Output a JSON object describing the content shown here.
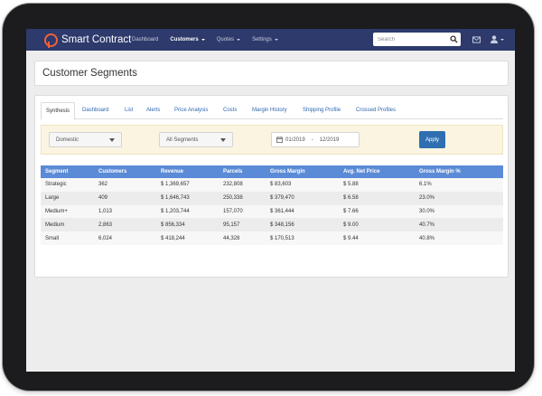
{
  "navbar": {
    "brand": "Smart Contract",
    "links": [
      "Dashboard",
      "Customers",
      "Quotes",
      "Settings"
    ],
    "search_placeholder": "Search"
  },
  "page": {
    "title": "Customer Segments"
  },
  "tabs": [
    "Synthesis",
    "Dashboard",
    "List",
    "Alerts",
    "Price Analysis",
    "Costs",
    "Margin History",
    "Shipping Profile",
    "Crossed Profiles"
  ],
  "filters": {
    "region": "Domestic",
    "segment": "All Segments",
    "date_from": "01/2019",
    "date_sep": "-",
    "date_to": "12/2019",
    "apply_label": "Apply"
  },
  "table": {
    "columns": [
      "Segment",
      "Customers",
      "Revenue",
      "Parcels",
      "Gross Margin",
      "Avg. Net Price",
      "Gross Margin %"
    ],
    "rows": [
      [
        "Strategic",
        "362",
        "$ 1,369,657",
        "232,808",
        "$ 83,603",
        "$ 5.88",
        "6.1%"
      ],
      [
        "Large",
        "409",
        "$ 1,646,743",
        "250,338",
        "$ 379,470",
        "$ 6.58",
        "23.0%"
      ],
      [
        "Medium+",
        "1,013",
        "$ 1,203,744",
        "157,070",
        "$ 361,444",
        "$ 7.66",
        "30.0%"
      ],
      [
        "Medium",
        "2,863",
        "$ 856,334",
        "95,157",
        "$ 348,156",
        "$ 9.00",
        "40.7%"
      ],
      [
        "Small",
        "6,024",
        "$ 418,244",
        "44,328",
        "$ 170,513",
        "$ 9.44",
        "40.8%"
      ]
    ]
  },
  "colors": {
    "navbar": "#2d3a6b",
    "brand_accent": "#f2603a",
    "table_header": "#5b8bd6",
    "apply_button": "#2f6fb1",
    "filter_bar": "#fbf4e1",
    "link": "#2f67b0"
  }
}
